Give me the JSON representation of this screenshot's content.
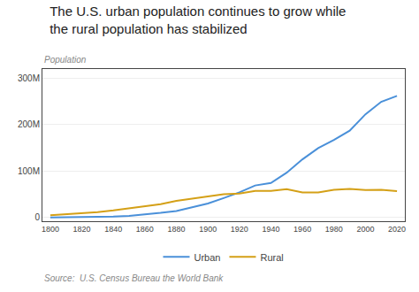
{
  "chart_data": {
    "type": "line",
    "title": "The U.S. urban population continues to grow while\nthe rural population has stabilized",
    "ylabel": "Population",
    "annotations": [
      "Source:  U.S. Census Bureau the World Bank"
    ],
    "x": [
      1800,
      1810,
      1820,
      1830,
      1840,
      1850,
      1860,
      1870,
      1880,
      1890,
      1900,
      1910,
      1920,
      1930,
      1940,
      1950,
      1960,
      1970,
      1980,
      1990,
      2000,
      2010,
      2020
    ],
    "series": [
      {
        "name": "Urban",
        "color": "#4a90d9",
        "values": [
          0.3,
          0.5,
          0.7,
          1.1,
          1.8,
          3.5,
          6.2,
          9.9,
          14.1,
          22.1,
          30.2,
          41.9,
          54.2,
          69.0,
          74.4,
          96.5,
          125.3,
          149.6,
          167.1,
          187.1,
          222.4,
          249.3,
          262.0
        ]
      },
      {
        "name": "Rural",
        "color": "#d4a017",
        "values": [
          4.9,
          6.7,
          8.9,
          11.7,
          15.2,
          19.6,
          25.2,
          28.7,
          36.0,
          40.8,
          45.8,
          50.0,
          51.6,
          57.5,
          57.5,
          61.2,
          54.1,
          53.9,
          59.5,
          61.7,
          59.1,
          59.5,
          57.0
        ]
      }
    ],
    "xlim": [
      1795,
      2025
    ],
    "xticks": [
      1800,
      1820,
      1840,
      1860,
      1880,
      1900,
      1920,
      1940,
      1960,
      1980,
      2000,
      2020
    ],
    "ylim": [
      -8,
      320
    ],
    "yticks": [
      0,
      {
        "value": 100,
        "label": "100M"
      },
      {
        "value": 200,
        "label": "200M"
      },
      {
        "value": 300,
        "label": "300M"
      }
    ],
    "grid": "y",
    "legend": "bottom"
  }
}
